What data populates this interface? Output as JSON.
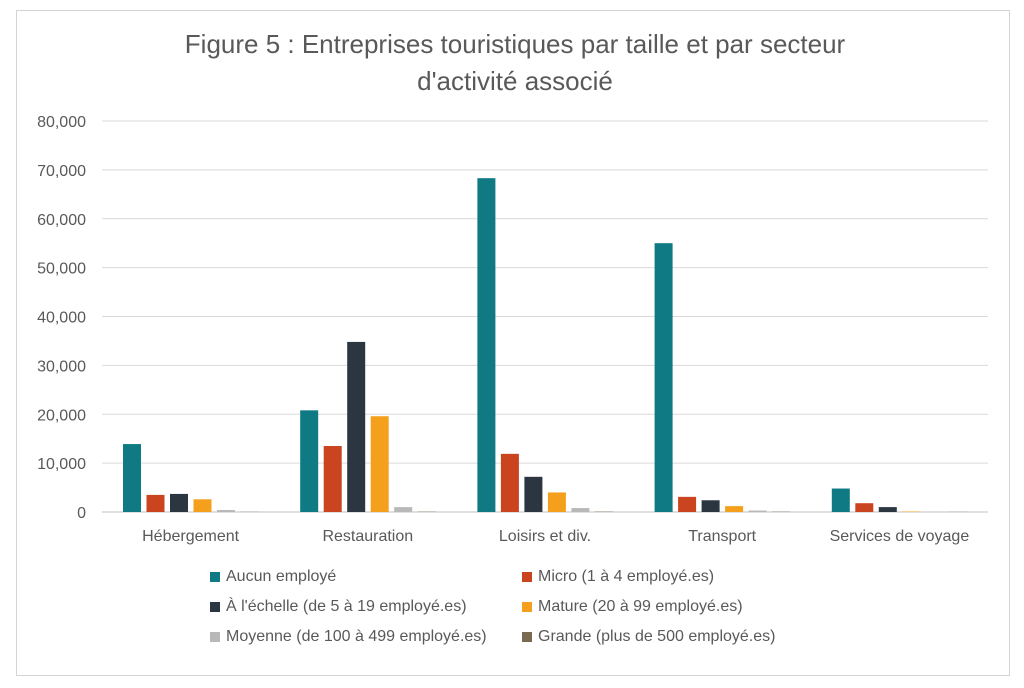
{
  "chart_data": {
    "type": "bar",
    "title_lines": [
      "Figure 5 : Entreprises touristiques par taille et par secteur",
      "d'activité associé"
    ],
    "categories": [
      "Hébergement",
      "Restauration",
      "Loisirs et div.",
      "Transport",
      "Services de voyage"
    ],
    "series": [
      {
        "name": "Aucun employé",
        "color": "#0f7a83",
        "values": [
          13900,
          20800,
          68300,
          55000,
          4800
        ]
      },
      {
        "name": "Micro (1 à 4 employé.es)",
        "color": "#c9441f",
        "values": [
          3500,
          13500,
          11900,
          3100,
          1800
        ]
      },
      {
        "name": "À l'échelle (de 5 à 19 employé.es)",
        "color": "#2b3640",
        "values": [
          3700,
          34800,
          7200,
          2400,
          1000
        ]
      },
      {
        "name": "Mature (20 à 99 employé.es)",
        "color": "#f5a01d",
        "values": [
          2600,
          19600,
          4000,
          1200,
          100
        ]
      },
      {
        "name": "Moyenne (de 100 à 499 employé.es)",
        "color": "#b8b8b8",
        "values": [
          400,
          1000,
          800,
          300,
          50
        ]
      },
      {
        "name": "Grande (plus de 500 employé.es)",
        "color": "#7a6a52",
        "values": [
          30,
          60,
          70,
          60,
          20
        ]
      }
    ],
    "ylim": [
      0,
      80000
    ],
    "yticks": [
      0,
      10000,
      20000,
      30000,
      40000,
      50000,
      60000,
      70000,
      80000
    ],
    "ytick_labels": [
      "0",
      "10,000",
      "20,000",
      "30,000",
      "40,000",
      "50,000",
      "60,000",
      "70,000",
      "80,000"
    ],
    "xlabel": "",
    "ylabel": "",
    "grid": true,
    "legend_position": "bottom"
  }
}
